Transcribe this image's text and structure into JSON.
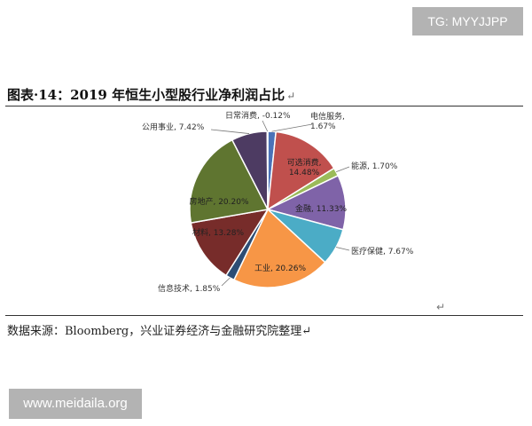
{
  "badge_top": "TG: MYYJJPP",
  "title": "图表·14：2019 年恒生小型股行业净利润占比",
  "return_mark": "↵",
  "source": "数据来源：Bloomberg，兴业证券经济与金融研究院整理↵",
  "stray_mark": "↵",
  "watermark": "www.meidaila.org",
  "chart_data": {
    "type": "pie",
    "slices": [
      {
        "label": "电信服务, 1.67%",
        "value": 1.67,
        "color": "#4a72b8"
      },
      {
        "label": "可选消费, 14.48%",
        "value": 14.48,
        "color": "#c0504d"
      },
      {
        "label": "能源, 1.70%",
        "value": 1.7,
        "color": "#9bbb59"
      },
      {
        "label": "金融, 11.33%",
        "value": 11.33,
        "color": "#7f63a8"
      },
      {
        "label": "医疗保健, 7.67%",
        "value": 7.67,
        "color": "#4bacc6"
      },
      {
        "label": "工业, 20.26%",
        "value": 20.26,
        "color": "#f79646"
      },
      {
        "label": "信息技术, 1.85%",
        "value": 1.85,
        "color": "#2c4d75"
      },
      {
        "label": "材料, 13.28%",
        "value": 13.28,
        "color": "#772c2a"
      },
      {
        "label": "房地产, 20.20%",
        "value": 20.2,
        "color": "#5f7530"
      },
      {
        "label": "公用事业, 7.42%",
        "value": 7.42,
        "color": "#4d3b62"
      },
      {
        "label": "日常消费, -0.12%",
        "value": -0.12,
        "color": "#ffffff"
      }
    ]
  }
}
